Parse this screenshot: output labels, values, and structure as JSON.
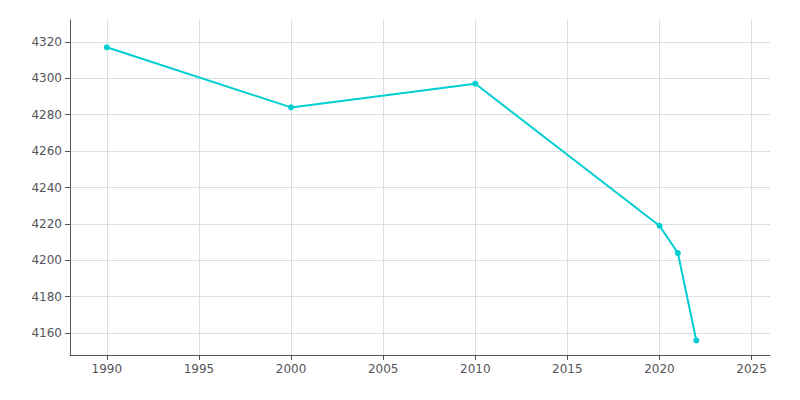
{
  "chart_data": {
    "type": "line",
    "x": [
      1990,
      2000,
      2010,
      2020,
      2021,
      2022
    ],
    "values": [
      4317,
      4284,
      4297,
      4219,
      4204,
      4156
    ],
    "color": "#00CED1",
    "marker": "circle",
    "xlim": [
      1988,
      2026
    ],
    "ylim": [
      4148,
      4332
    ],
    "xticks": [
      1990,
      1995,
      2000,
      2005,
      2010,
      2015,
      2020,
      2025
    ],
    "yticks": [
      4160,
      4180,
      4200,
      4220,
      4240,
      4260,
      4280,
      4300,
      4320
    ],
    "grid": true
  }
}
